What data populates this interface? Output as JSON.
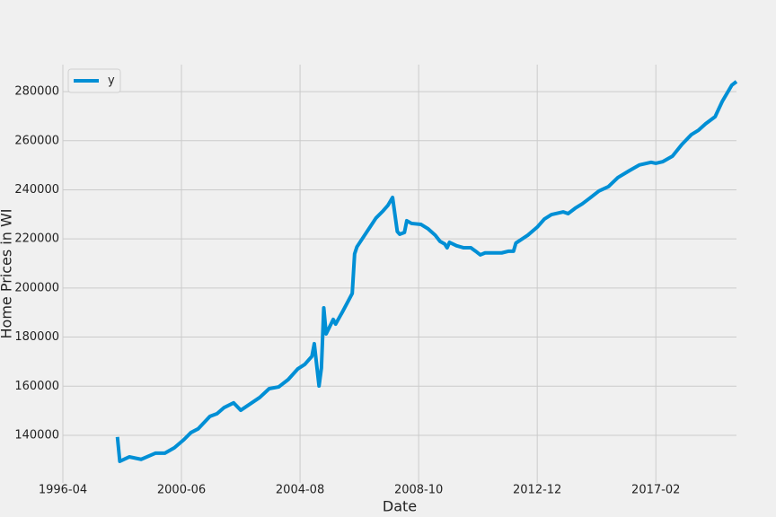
{
  "chart_data": {
    "type": "line",
    "x_label": "Date",
    "y_label": "Home Prices in WI",
    "x": [
      "1998-03",
      "1998-04",
      "1998-08",
      "1999-01",
      "1999-07",
      "1999-11",
      "2000-03",
      "2000-07",
      "2000-10",
      "2001-01",
      "2001-06",
      "2001-09",
      "2001-12",
      "2002-04",
      "2002-07",
      "2002-11",
      "2003-03",
      "2003-07",
      "2003-11",
      "2004-03",
      "2004-07",
      "2004-10",
      "2005-01",
      "2005-02",
      "2005-04",
      "2005-05",
      "2005-06",
      "2005-07",
      "2005-10",
      "2005-11",
      "2006-02",
      "2006-06",
      "2006-07",
      "2006-08",
      "2007-01",
      "2007-04",
      "2007-07",
      "2007-09",
      "2007-11",
      "2008-01",
      "2008-02",
      "2008-04",
      "2008-05",
      "2008-07",
      "2008-11",
      "2009-02",
      "2009-05",
      "2009-07",
      "2009-09",
      "2009-10",
      "2009-11",
      "2010-02",
      "2010-05",
      "2010-08",
      "2010-10",
      "2010-12",
      "2011-02",
      "2011-05",
      "2011-09",
      "2011-12",
      "2012-02",
      "2012-03",
      "2012-08",
      "2012-12",
      "2013-03",
      "2013-06",
      "2013-11",
      "2014-01",
      "2014-04",
      "2014-07",
      "2014-10",
      "2015-02",
      "2015-06",
      "2015-10",
      "2016-03",
      "2016-07",
      "2016-12",
      "2017-02",
      "2017-05",
      "2017-09",
      "2018-01",
      "2018-05",
      "2018-08",
      "2018-11",
      "2019-03",
      "2019-06",
      "2019-10",
      "2019-12"
    ],
    "series": [
      {
        "name": "y",
        "color": "#008fd5",
        "values": [
          139300,
          129400,
          131200,
          130200,
          132700,
          132700,
          134900,
          138200,
          141100,
          142600,
          147700,
          148800,
          151300,
          153200,
          150200,
          152800,
          155400,
          159000,
          159700,
          162700,
          167000,
          168900,
          172200,
          177300,
          160100,
          167400,
          191900,
          181300,
          187200,
          185300,
          190500,
          197800,
          213900,
          216800,
          224100,
          228500,
          231400,
          233600,
          236900,
          223000,
          221900,
          222600,
          227400,
          226300,
          225900,
          224100,
          221500,
          219000,
          217900,
          216400,
          218600,
          217200,
          216400,
          216400,
          215000,
          213500,
          214300,
          214300,
          214300,
          215000,
          215000,
          218300,
          221500,
          224800,
          228100,
          229900,
          231000,
          230300,
          232500,
          234300,
          236500,
          239500,
          241300,
          245000,
          247900,
          250100,
          251200,
          250800,
          251500,
          253700,
          258500,
          262500,
          264300,
          266900,
          269800,
          276000,
          282600,
          284100
        ]
      }
    ],
    "xlim": [
      "1996-04",
      "2019-12"
    ],
    "xticks": [
      "1996-04",
      "2000-06",
      "2004-08",
      "2008-10",
      "2012-12",
      "2017-02"
    ],
    "ylim": [
      120600,
      291000
    ],
    "yticks": [
      140000,
      160000,
      180000,
      200000,
      220000,
      240000,
      260000,
      280000
    ],
    "grid": true,
    "legend": "upper left"
  }
}
